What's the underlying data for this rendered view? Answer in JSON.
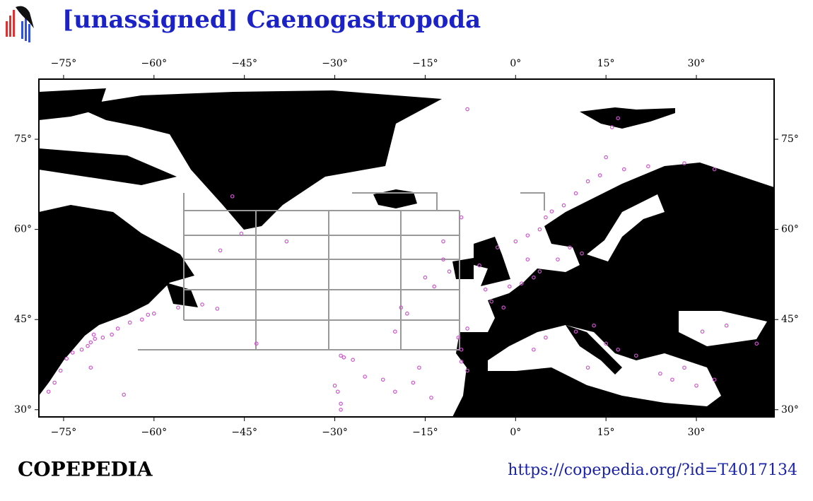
{
  "header": {
    "title": "[unassigned] Caenogastropoda"
  },
  "map": {
    "xlim": [
      -79.1,
      42.9
    ],
    "ylim": [
      28.8,
      85
    ],
    "xticks": [
      {
        "value": -75,
        "label": "−75°"
      },
      {
        "value": -60,
        "label": "−60°"
      },
      {
        "value": -45,
        "label": "−45°"
      },
      {
        "value": -30,
        "label": "−30°"
      },
      {
        "value": -15,
        "label": "−15°"
      },
      {
        "value": 0,
        "label": "0°"
      },
      {
        "value": 15,
        "label": "15°"
      },
      {
        "value": 30,
        "label": "30°"
      }
    ],
    "yticks": [
      {
        "value": 30,
        "label": "30°"
      },
      {
        "value": 45,
        "label": "45°"
      },
      {
        "value": 60,
        "label": "60°"
      },
      {
        "value": 75,
        "label": "75°"
      }
    ],
    "point_color": "#cc55cc",
    "points": [
      [
        -70.5,
        41.2
      ],
      [
        -69.8,
        41.8
      ],
      [
        -71,
        40.6
      ],
      [
        -68.5,
        42
      ],
      [
        -70,
        42.5
      ],
      [
        -72,
        40
      ],
      [
        -73.5,
        39.5
      ],
      [
        -74.5,
        38.5
      ],
      [
        -75.5,
        36.5
      ],
      [
        -76.5,
        34.5
      ],
      [
        -77.5,
        33
      ],
      [
        -67,
        42.5
      ],
      [
        -66,
        43.5
      ],
      [
        -64,
        44.5
      ],
      [
        -62,
        45
      ],
      [
        -61,
        45.8
      ],
      [
        -60,
        46
      ],
      [
        -56,
        47
      ],
      [
        -52,
        47.5
      ],
      [
        -49.5,
        46.8
      ],
      [
        -65,
        32.5
      ],
      [
        -70.5,
        37
      ],
      [
        -47,
        65.5
      ],
      [
        -45.5,
        59.3
      ],
      [
        -38,
        58
      ],
      [
        -49,
        56.5
      ],
      [
        -43,
        41
      ],
      [
        -29,
        39
      ],
      [
        -28.5,
        38.7
      ],
      [
        -27,
        38.3
      ],
      [
        -30,
        34
      ],
      [
        -29.5,
        33
      ],
      [
        -29,
        31
      ],
      [
        -29,
        30
      ],
      [
        -22,
        35
      ],
      [
        -17,
        34.5
      ],
      [
        -20,
        33
      ],
      [
        -25,
        35.5
      ],
      [
        -14,
        32
      ],
      [
        -16,
        37
      ],
      [
        -20,
        43
      ],
      [
        -18,
        46
      ],
      [
        -19,
        47
      ],
      [
        -13.5,
        50.5
      ],
      [
        -15,
        52
      ],
      [
        -11,
        53
      ],
      [
        -12,
        55
      ],
      [
        -12,
        58
      ],
      [
        -9,
        62
      ],
      [
        -8,
        80
      ],
      [
        -5,
        50
      ],
      [
        -4,
        48
      ],
      [
        -2,
        47
      ],
      [
        -6,
        54
      ],
      [
        -3,
        57
      ],
      [
        0,
        58
      ],
      [
        2,
        59
      ],
      [
        4,
        60
      ],
      [
        5,
        62
      ],
      [
        6,
        63
      ],
      [
        8,
        64
      ],
      [
        10,
        66
      ],
      [
        12,
        68
      ],
      [
        14,
        69
      ],
      [
        18,
        70
      ],
      [
        22,
        70.5
      ],
      [
        28,
        71
      ],
      [
        33,
        70
      ],
      [
        16,
        77
      ],
      [
        17,
        78.5
      ],
      [
        15,
        72
      ],
      [
        2,
        55
      ],
      [
        4,
        53
      ],
      [
        7,
        55
      ],
      [
        9,
        57
      ],
      [
        11,
        56
      ],
      [
        3,
        52
      ],
      [
        -1,
        50.5
      ],
      [
        1,
        51
      ],
      [
        -9,
        38
      ],
      [
        -9,
        40
      ],
      [
        -8,
        36.5
      ],
      [
        3,
        40
      ],
      [
        5,
        42
      ],
      [
        10,
        43
      ],
      [
        13,
        44
      ],
      [
        15,
        41
      ],
      [
        12,
        37
      ],
      [
        17,
        40
      ],
      [
        20,
        39
      ],
      [
        24,
        36
      ],
      [
        26,
        35
      ],
      [
        28,
        37
      ],
      [
        30,
        34
      ],
      [
        33,
        35
      ],
      [
        31,
        43
      ],
      [
        35,
        44
      ],
      [
        40,
        41
      ],
      [
        -8,
        43.5
      ],
      [
        -9.5,
        42
      ]
    ]
  },
  "footer": {
    "brand": "COPEPEDIA",
    "url": "https://copepedia.org/?id=T4017134"
  }
}
